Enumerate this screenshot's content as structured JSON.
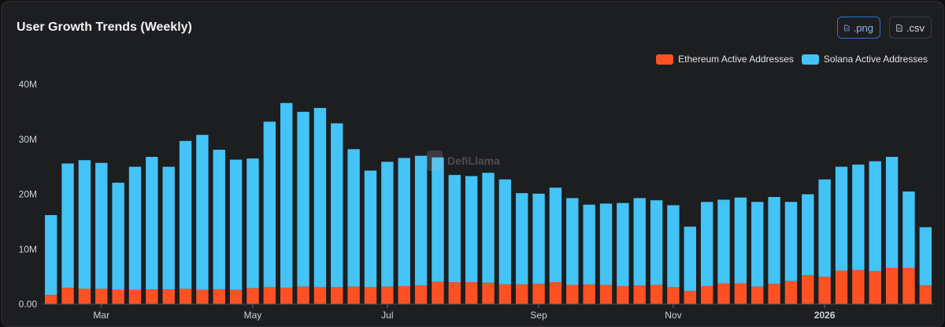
{
  "title": "User Growth Trends (Weekly)",
  "buttons": {
    "png": ".png",
    "csv": ".csv"
  },
  "watermark": "DefiLlama",
  "colors": {
    "ethereum": "#fc5223",
    "solana": "#44c3f7",
    "axis_text": "#cfd2d6",
    "grid": "#2d2f33"
  },
  "chart_data": {
    "type": "bar",
    "stacked": true,
    "title": "User Growth Trends (Weekly)",
    "xlabel": "",
    "ylabel": "",
    "ylim": [
      0,
      40000000
    ],
    "yticks": [
      0,
      10000000,
      20000000,
      30000000,
      40000000
    ],
    "ytick_labels": [
      "0.00",
      "10M",
      "20M",
      "30M",
      "40M"
    ],
    "xtick_labels": [
      {
        "label": "Mar",
        "index": 3,
        "bold": false
      },
      {
        "label": "May",
        "index": 12,
        "bold": false
      },
      {
        "label": "Jul",
        "index": 20,
        "bold": false
      },
      {
        "label": "Sep",
        "index": 29,
        "bold": false
      },
      {
        "label": "Nov",
        "index": 37,
        "bold": false
      },
      {
        "label": "2026",
        "index": 46,
        "bold": true
      }
    ],
    "legend_position": "top-right",
    "series": [
      {
        "name": "Ethereum Active Addresses",
        "color": "#fc5223",
        "values": [
          1.7,
          3.0,
          2.8,
          2.8,
          2.6,
          2.6,
          2.7,
          2.7,
          2.8,
          2.6,
          2.7,
          2.6,
          2.9,
          3.1,
          3.0,
          3.2,
          3.1,
          3.1,
          3.2,
          3.1,
          3.2,
          3.3,
          3.4,
          4.1,
          4.0,
          4.0,
          3.9,
          3.6,
          3.6,
          3.7,
          4.0,
          3.5,
          3.6,
          3.5,
          3.3,
          3.4,
          3.5,
          3.1,
          2.4,
          3.3,
          3.8,
          3.8,
          3.2,
          3.7,
          4.2,
          5.3,
          5.0,
          6.1,
          6.2,
          6.0,
          6.6,
          6.6,
          3.4
        ]
      },
      {
        "name": "Solana Active Addresses",
        "color": "#44c3f7",
        "values": [
          14.5,
          22.6,
          23.4,
          22.9,
          19.5,
          22.4,
          24.1,
          22.3,
          26.9,
          28.2,
          25.4,
          23.7,
          23.6,
          30.1,
          33.6,
          31.8,
          32.6,
          29.8,
          25.0,
          21.2,
          22.7,
          23.3,
          23.6,
          22.6,
          19.5,
          19.3,
          20.0,
          19.1,
          16.6,
          16.4,
          17.2,
          15.8,
          14.5,
          14.8,
          15.1,
          15.9,
          15.4,
          14.9,
          11.7,
          15.3,
          15.2,
          15.6,
          15.4,
          15.8,
          14.4,
          14.7,
          17.7,
          18.9,
          19.2,
          20.0,
          20.2,
          13.9,
          10.6
        ]
      }
    ],
    "units": "millions"
  }
}
